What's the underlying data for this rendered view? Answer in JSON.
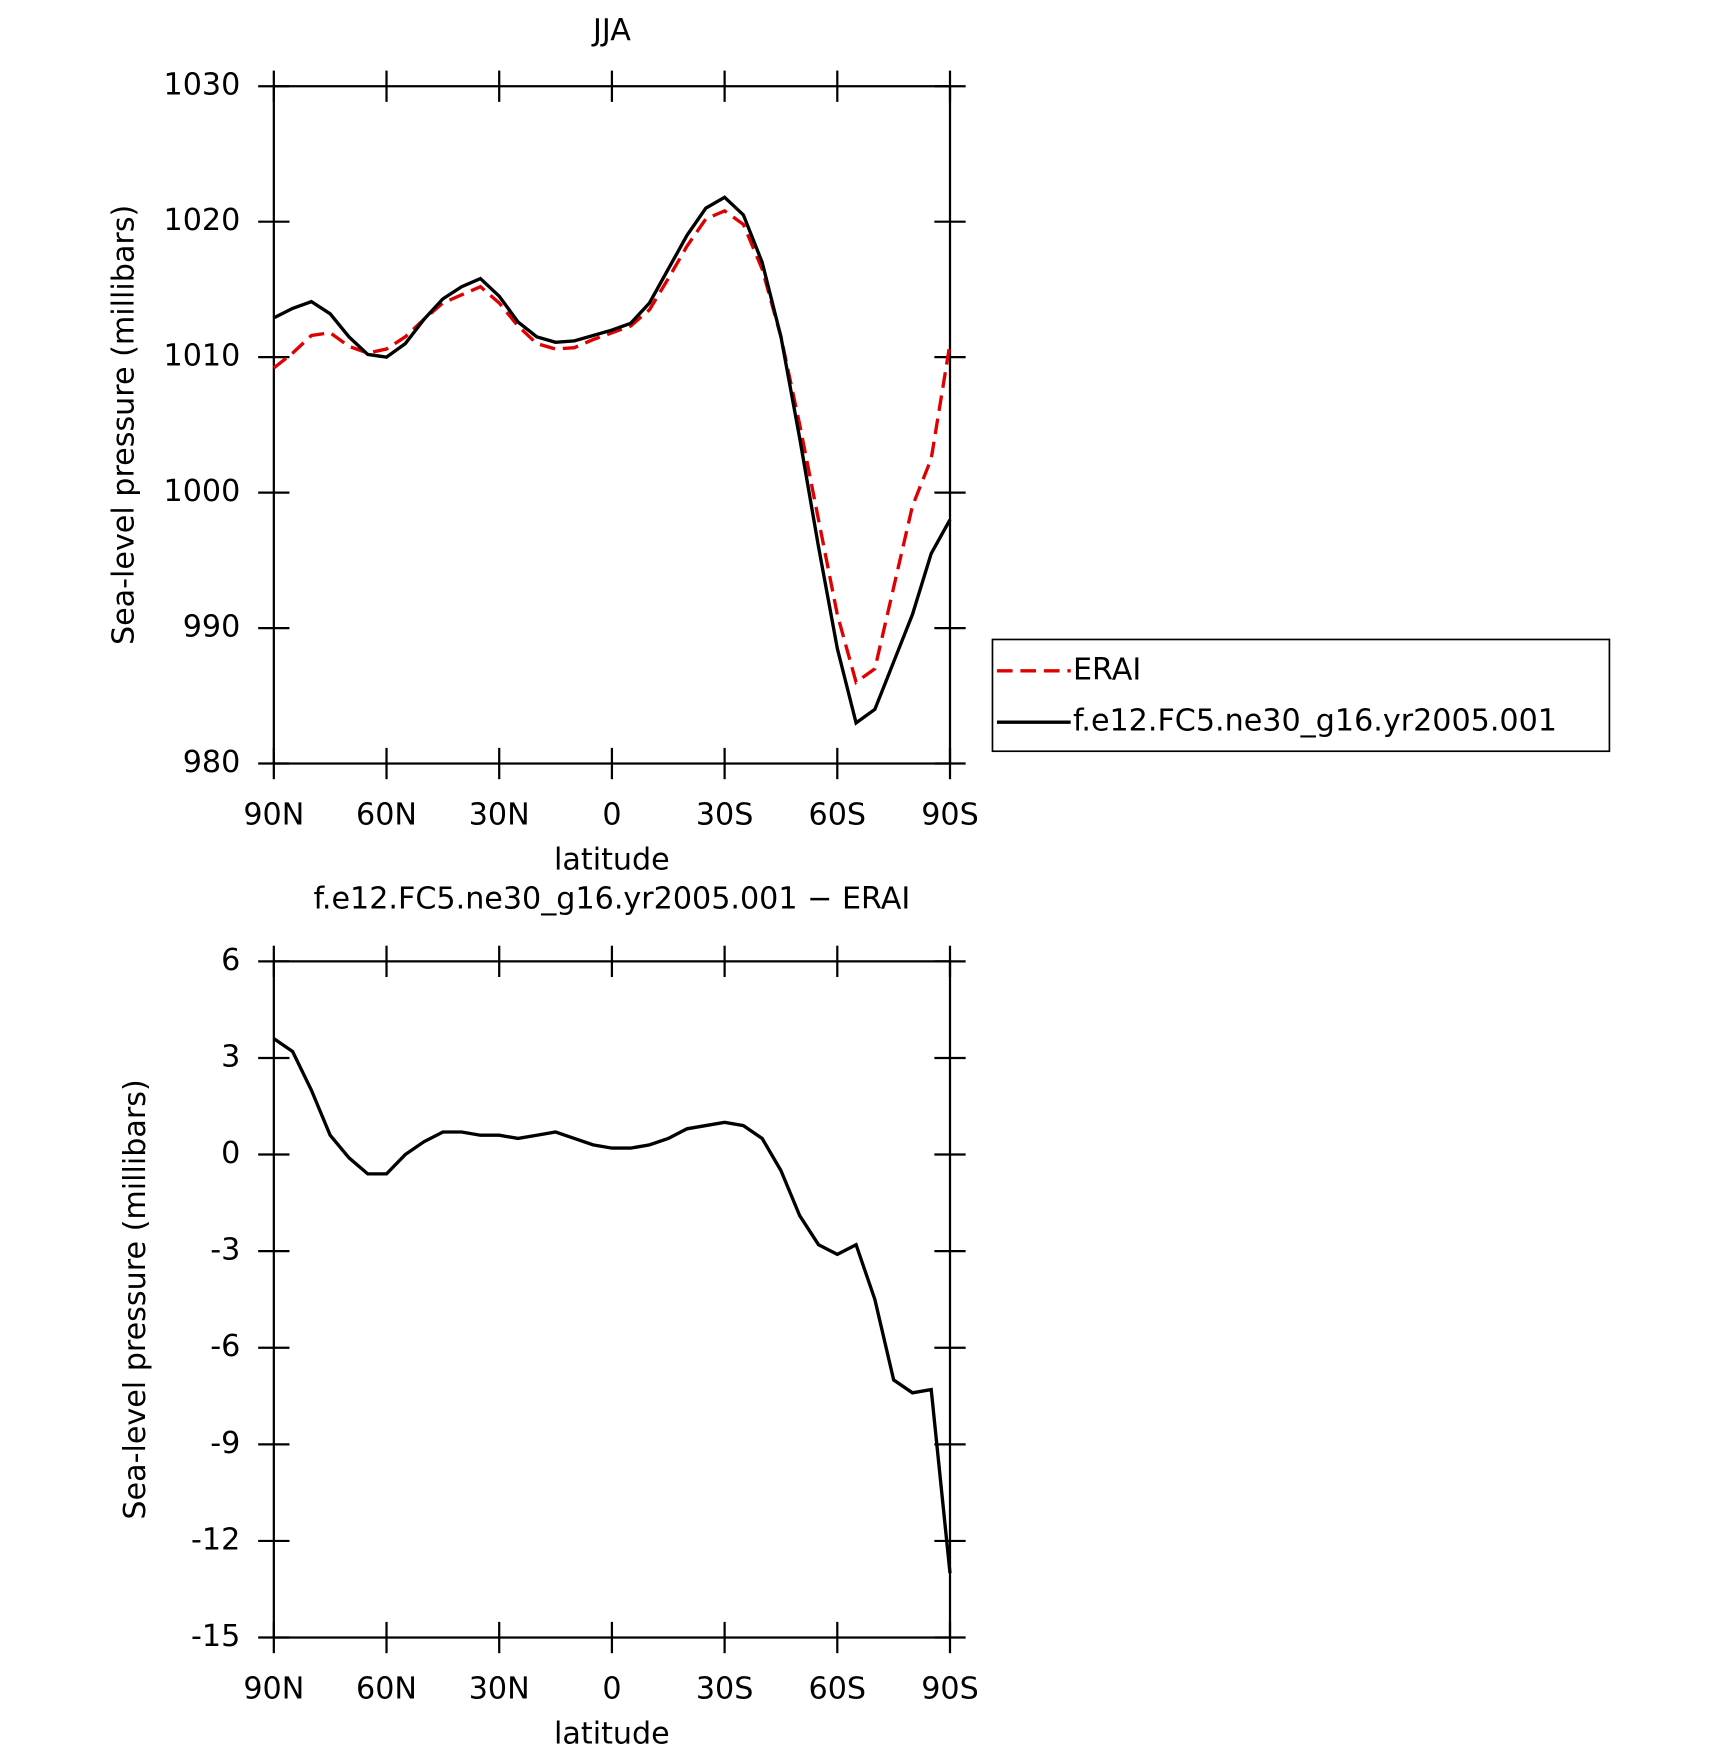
{
  "chart_data": [
    {
      "type": "line",
      "title": "JJA",
      "xlabel": "latitude",
      "ylabel": "Sea-level pressure (millibars)",
      "x": [
        90,
        85,
        80,
        75,
        70,
        65,
        60,
        55,
        50,
        45,
        40,
        35,
        30,
        25,
        20,
        15,
        10,
        5,
        0,
        -5,
        -10,
        -15,
        -20,
        -25,
        -30,
        -35,
        -40,
        -45,
        -50,
        -55,
        -60,
        -65,
        -70,
        -75,
        -80,
        -85,
        -90
      ],
      "series": [
        {
          "name": "ERAI",
          "color": "#e00000",
          "dash": true,
          "values": [
            1009.2,
            1010.3,
            1011.6,
            1011.8,
            1010.8,
            1010.3,
            1010.6,
            1011.5,
            1012.8,
            1014.0,
            1014.6,
            1015.2,
            1014.0,
            1012.3,
            1011.0,
            1010.6,
            1010.7,
            1011.3,
            1011.8,
            1012.3,
            1013.5,
            1015.8,
            1018.2,
            1020.2,
            1020.8,
            1019.8,
            1016.5,
            1011.5,
            1005.0,
            998.0,
            991.0,
            986.0,
            987.0,
            993.0,
            999.0,
            1002.5,
            1011.0
          ]
        },
        {
          "name": "f.e12.FC5.ne30_g16.yr2005.001",
          "color": "#000000",
          "dash": false,
          "values": [
            1012.9,
            1013.6,
            1014.1,
            1013.2,
            1011.5,
            1010.2,
            1010.0,
            1011.0,
            1012.8,
            1014.3,
            1015.2,
            1015.8,
            1014.5,
            1012.6,
            1011.5,
            1011.1,
            1011.2,
            1011.6,
            1012.0,
            1012.5,
            1014.0,
            1016.5,
            1019.0,
            1021.0,
            1021.8,
            1020.5,
            1017.0,
            1011.5,
            1004.0,
            996.0,
            988.5,
            983.0,
            984.0,
            987.5,
            991.0,
            995.5,
            998.0
          ]
        }
      ],
      "xlim": [
        90,
        -90
      ],
      "xticks": [
        {
          "value": 90,
          "label": "90N"
        },
        {
          "value": 60,
          "label": "60N"
        },
        {
          "value": 30,
          "label": "30N"
        },
        0,
        {
          "value": -30,
          "label": "30S"
        },
        {
          "value": -60,
          "label": "60S"
        },
        {
          "value": -90,
          "label": "90S"
        }
      ],
      "ylim": [
        980,
        1030
      ],
      "yticks": [
        980,
        990,
        1000,
        1010,
        1020,
        1030
      ],
      "legend": "outside-right"
    },
    {
      "type": "line",
      "title": "f.e12.FC5.ne30_g16.yr2005.001 − ERAI",
      "xlabel": "latitude",
      "ylabel": "Sea-level pressure (millibars)",
      "x": [
        90,
        85,
        80,
        75,
        70,
        65,
        60,
        55,
        50,
        45,
        40,
        35,
        30,
        25,
        20,
        15,
        10,
        5,
        0,
        -5,
        -10,
        -15,
        -20,
        -25,
        -30,
        -35,
        -40,
        -45,
        -50,
        -55,
        -60,
        -65,
        -70,
        -75,
        -80,
        -85,
        -90
      ],
      "series": [
        {
          "color": "#000000",
          "dash": false,
          "values": [
            3.6,
            3.2,
            2.0,
            0.6,
            -0.1,
            -0.6,
            -0.6,
            0.0,
            0.4,
            0.7,
            0.7,
            0.6,
            0.6,
            0.5,
            0.6,
            0.7,
            0.5,
            0.3,
            0.2,
            0.2,
            0.3,
            0.5,
            0.8,
            0.9,
            1.0,
            0.9,
            0.5,
            -0.5,
            -1.9,
            -2.8,
            -3.1,
            -2.8,
            -4.5,
            -7.0,
            -7.4,
            -7.3,
            -13.0
          ]
        }
      ],
      "xlim": [
        90,
        -90
      ],
      "xticks": [
        {
          "value": 90,
          "label": "90N"
        },
        {
          "value": 60,
          "label": "60N"
        },
        {
          "value": 30,
          "label": "30N"
        },
        0,
        {
          "value": -30,
          "label": "30S"
        },
        {
          "value": -60,
          "label": "60S"
        },
        {
          "value": -90,
          "label": "90S"
        }
      ],
      "ylim": [
        -15,
        6
      ],
      "yticks": [
        -15,
        -12,
        -9,
        -6,
        -3,
        0,
        3,
        6
      ]
    }
  ]
}
